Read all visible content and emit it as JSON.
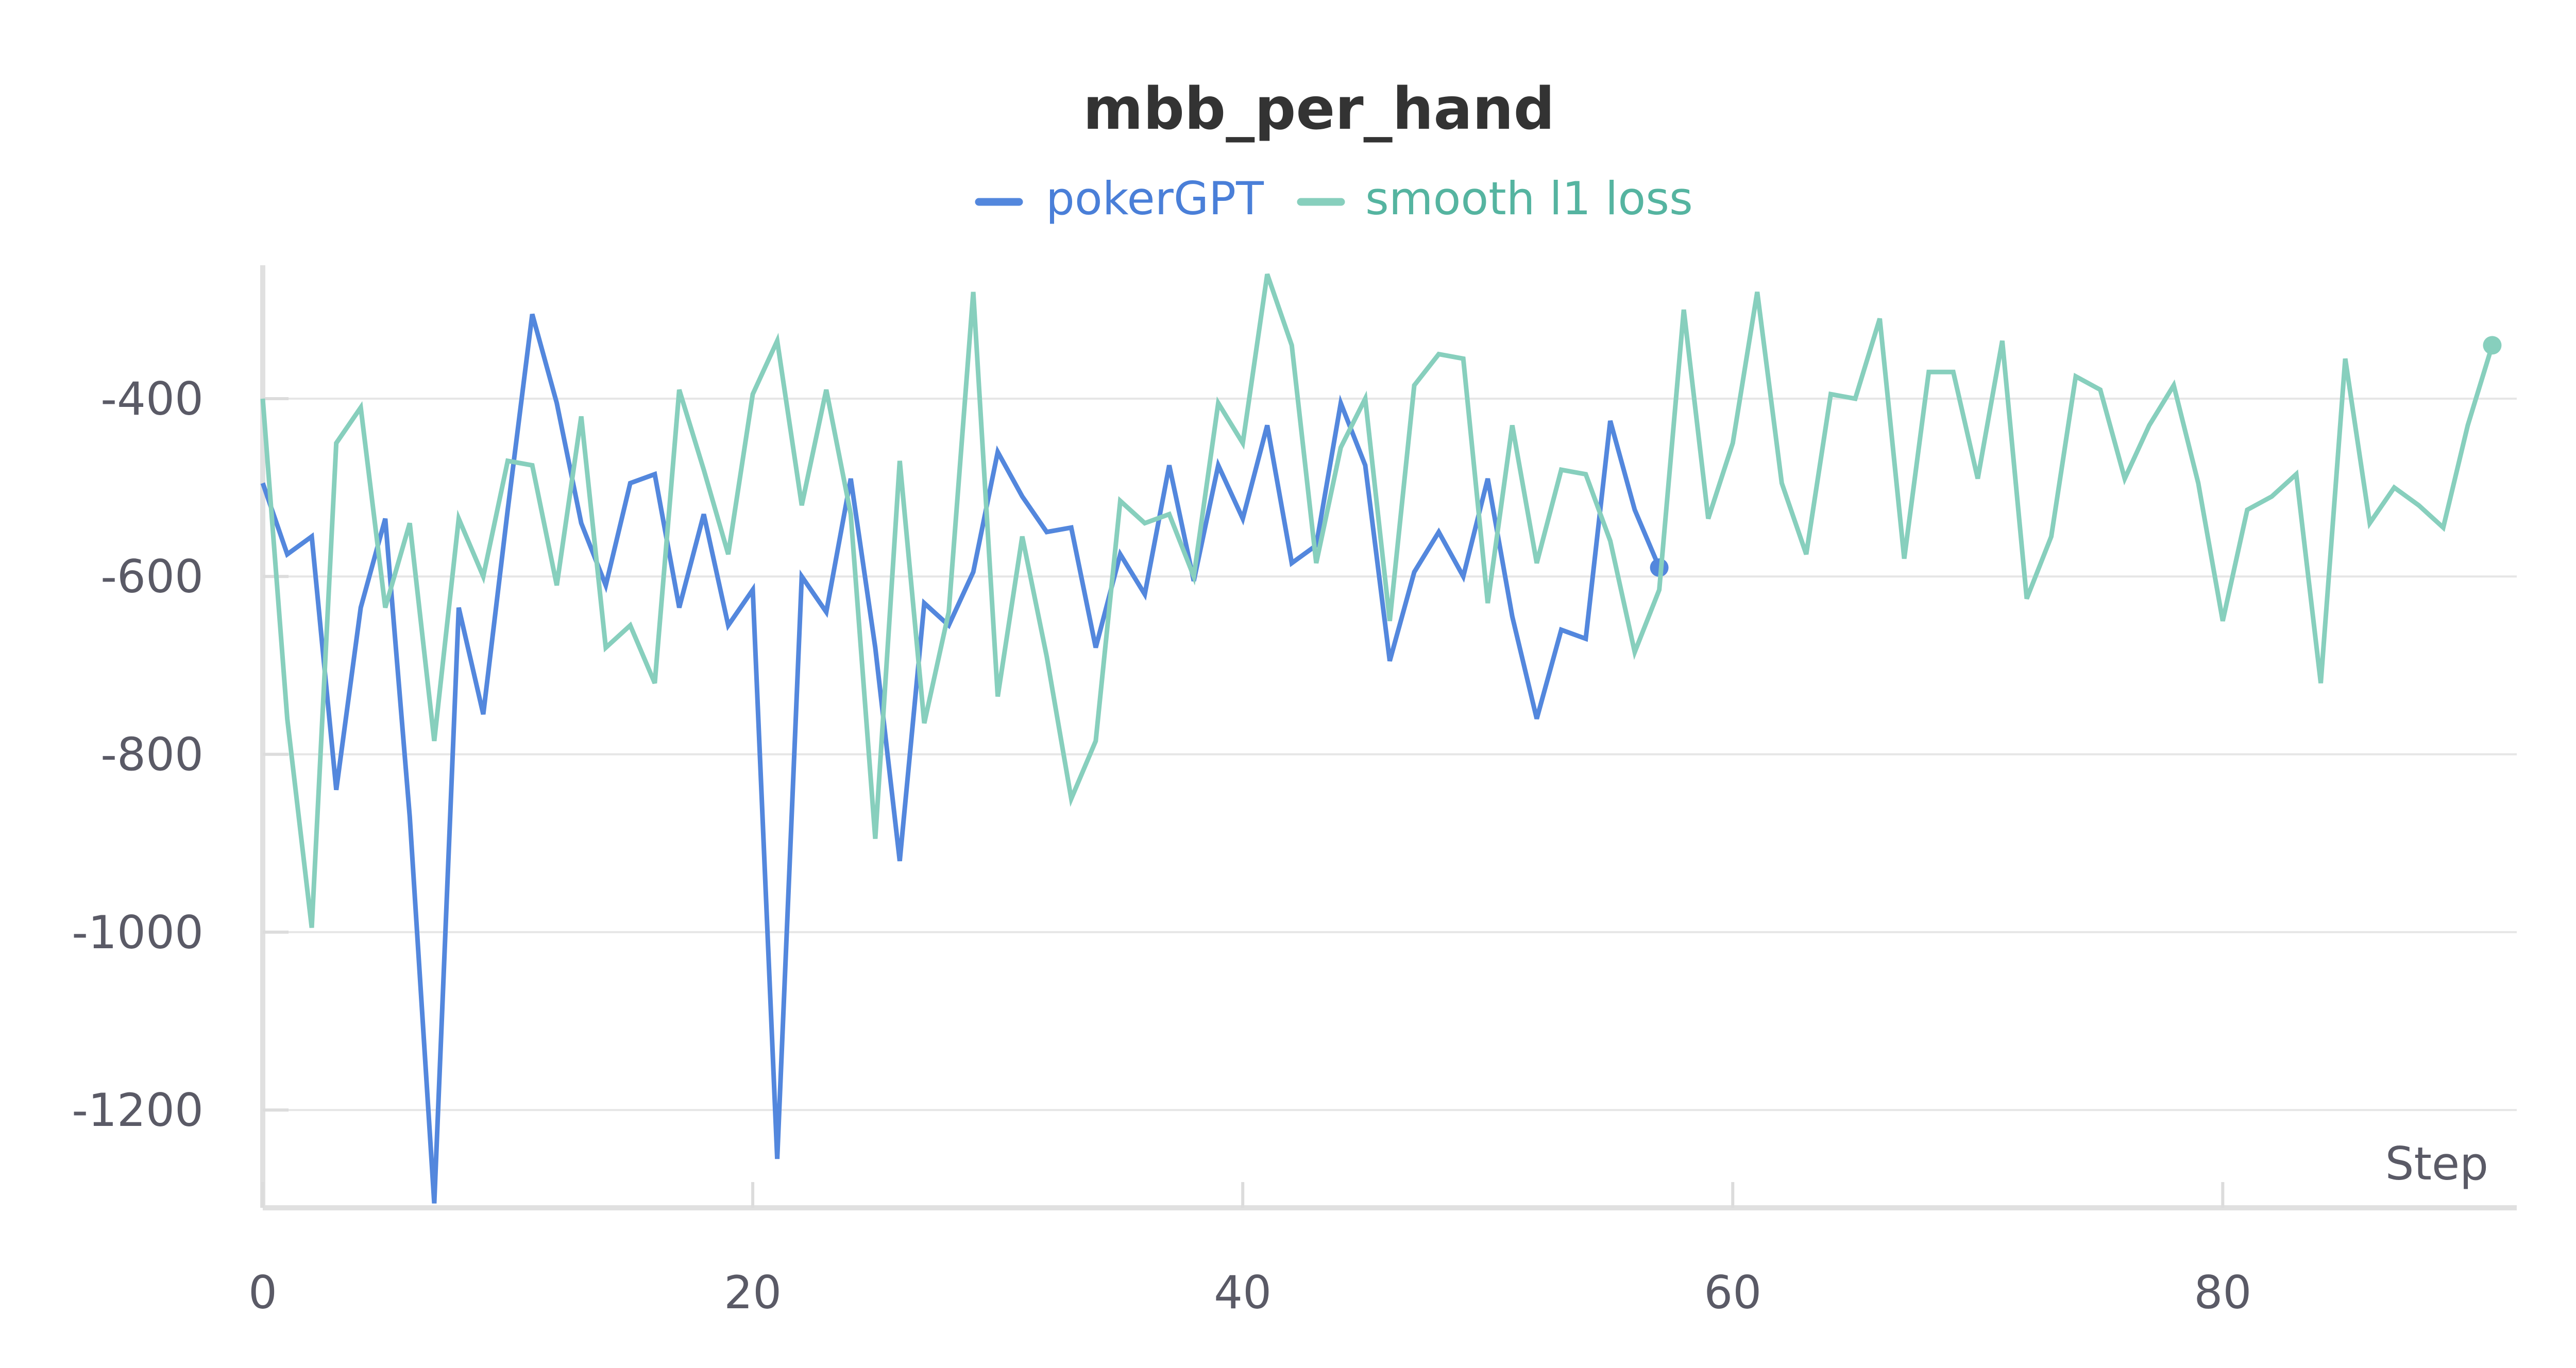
{
  "chart_data": {
    "type": "line",
    "title": "mbb_per_hand",
    "xlabel": "Step",
    "ylabel": "",
    "xlim": [
      0,
      92
    ],
    "ylim": [
      -1310,
      -250
    ],
    "x_ticks": [
      0,
      20,
      40,
      60,
      80
    ],
    "y_ticks": [
      -1200,
      -1000,
      -800,
      -600,
      -400
    ],
    "grid": "horizontal",
    "legend_position": "top-center",
    "series": [
      {
        "name": "pokerGPT",
        "color": "#5387dd",
        "end_marker": true,
        "x": [
          0,
          1,
          2,
          3,
          4,
          5,
          6,
          7,
          8,
          9,
          10,
          11,
          12,
          13,
          14,
          15,
          16,
          17,
          18,
          19,
          20,
          21,
          22,
          23,
          24,
          25,
          26,
          27,
          28,
          29,
          30,
          31,
          32,
          33,
          34,
          35,
          36,
          37,
          38,
          39,
          40,
          41,
          42,
          43,
          44,
          45,
          46,
          47,
          48,
          49,
          50,
          51,
          52,
          53,
          54,
          55,
          56,
          57
        ],
        "values": [
          -495,
          -575,
          -555,
          -840,
          -635,
          -535,
          -870,
          -1305,
          -635,
          -755,
          -525,
          -305,
          -405,
          -540,
          -610,
          -495,
          -485,
          -635,
          -530,
          -655,
          -615,
          -1255,
          -600,
          -640,
          -490,
          -680,
          -920,
          -630,
          -655,
          -595,
          -460,
          -510,
          -550,
          -545,
          -680,
          -575,
          -620,
          -475,
          -605,
          -475,
          -535,
          -430,
          -585,
          -565,
          -405,
          -475,
          -695,
          -595,
          -550,
          -600,
          -490,
          -645,
          -760,
          -660,
          -670,
          -425,
          -525,
          -590
        ]
      },
      {
        "name": "smooth l1 loss",
        "color": "#87cfbd",
        "end_marker": true,
        "x": [
          0,
          1,
          2,
          3,
          4,
          5,
          6,
          7,
          8,
          9,
          10,
          11,
          12,
          13,
          14,
          15,
          16,
          17,
          18,
          19,
          20,
          21,
          22,
          23,
          24,
          25,
          26,
          27,
          28,
          29,
          30,
          31,
          32,
          33,
          34,
          35,
          36,
          37,
          38,
          39,
          40,
          41,
          42,
          43,
          44,
          45,
          46,
          47,
          48,
          49,
          50,
          51,
          52,
          53,
          54,
          55,
          56,
          57,
          58,
          59,
          60,
          61,
          62,
          63,
          64,
          65,
          66,
          67,
          68,
          69,
          70,
          71,
          72,
          73,
          74,
          75,
          76,
          77,
          78,
          79,
          80,
          81,
          82,
          83,
          84,
          85,
          86,
          87,
          88,
          89,
          90,
          91
        ],
        "values": [
          -400,
          -760,
          -995,
          -450,
          -410,
          -635,
          -540,
          -785,
          -535,
          -600,
          -470,
          -475,
          -610,
          -420,
          -680,
          -655,
          -720,
          -390,
          -480,
          -575,
          -395,
          -335,
          -520,
          -390,
          -530,
          -895,
          -470,
          -765,
          -640,
          -280,
          -735,
          -555,
          -690,
          -850,
          -785,
          -515,
          -540,
          -530,
          -600,
          -405,
          -450,
          -260,
          -340,
          -585,
          -455,
          -400,
          -650,
          -385,
          -350,
          -355,
          -630,
          -430,
          -585,
          -480,
          -485,
          -560,
          -685,
          -615,
          -300,
          -535,
          -450,
          -280,
          -495,
          -575,
          -395,
          -400,
          -310,
          -580,
          -370,
          -370,
          -490,
          -335,
          -625,
          -555,
          -375,
          -390,
          -490,
          -430,
          -385,
          -495,
          -650,
          -525,
          -510,
          -485,
          -720,
          -355,
          -540,
          -500,
          -520,
          -545,
          -430,
          -340
        ]
      }
    ]
  }
}
